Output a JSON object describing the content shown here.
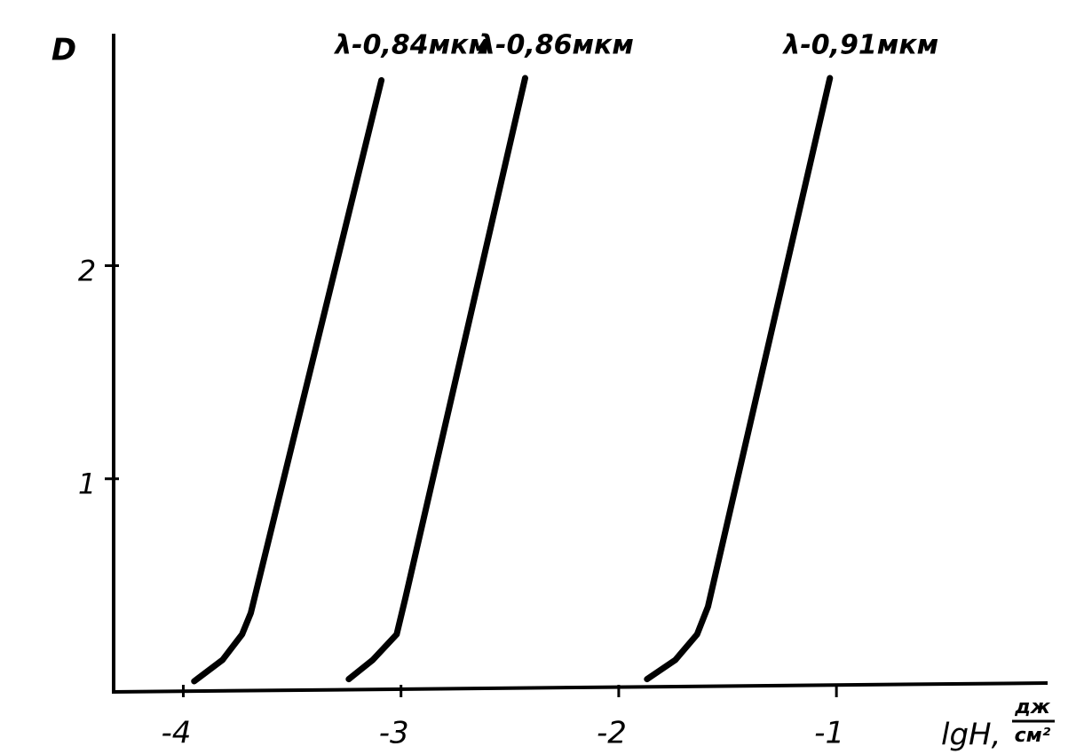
{
  "chart_data": {
    "type": "line",
    "ylabel": "D",
    "xlabel": "lgH,",
    "xlabel_units": [
      "дж",
      "см²"
    ],
    "xlim": [
      -4.32,
      -0.03
    ],
    "ylim": [
      0,
      3.08
    ],
    "xticks": [
      -4,
      -3,
      -2,
      -1
    ],
    "yticks": [
      1,
      2
    ],
    "series": [
      {
        "name": "λ-0,84мкм",
        "color": "#000000",
        "x": [
          -3.95,
          -3.82,
          -3.73,
          -3.69,
          -3.09
        ],
        "values": [
          0.05,
          0.15,
          0.27,
          0.37,
          2.87
        ]
      },
      {
        "name": "λ-0,86мкм",
        "color": "#000000",
        "x": [
          -3.24,
          -3.13,
          -3.02,
          -2.98,
          -2.43
        ],
        "values": [
          0.06,
          0.15,
          0.27,
          0.44,
          2.88
        ]
      },
      {
        "name": "λ-0,91мкм",
        "color": "#000000",
        "x": [
          -1.87,
          -1.74,
          -1.64,
          -1.59,
          -1.03
        ],
        "values": [
          0.06,
          0.15,
          0.27,
          0.4,
          2.88
        ]
      }
    ]
  }
}
